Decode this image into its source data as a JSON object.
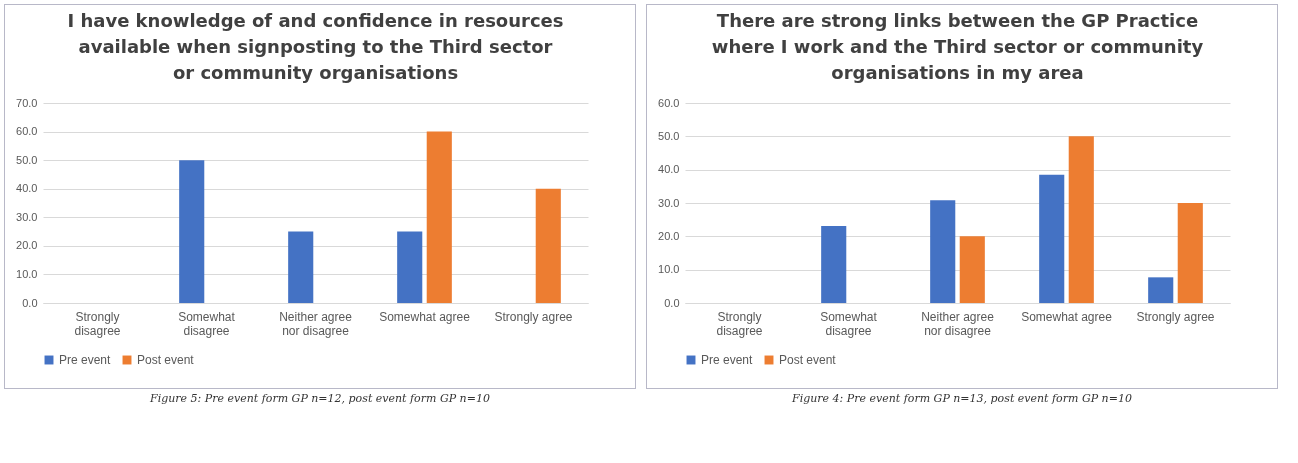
{
  "chart_data": [
    {
      "type": "bar",
      "title": "I have knowledge of and confidence in resources available when signposting to the Third sector or community organisations",
      "categories": [
        "Strongly disagree",
        "Somewhat disagree",
        "Neither agree nor disagree",
        "Somewhat agree",
        "Strongly agree"
      ],
      "series": [
        {
          "name": "Pre event",
          "color": "#4472c4",
          "values": [
            0,
            50,
            25,
            25,
            0
          ]
        },
        {
          "name": "Post event",
          "color": "#ed7d31",
          "values": [
            0,
            0,
            0,
            60,
            40
          ]
        }
      ],
      "ylim": [
        0,
        70
      ],
      "yticks": [
        {
          "value": 0,
          "label": "0.0"
        },
        {
          "value": 10,
          "label": "10.0"
        },
        {
          "value": 20,
          "label": "20.0"
        },
        {
          "value": 30,
          "label": "30.0"
        },
        {
          "value": 40,
          "label": "40.0"
        },
        {
          "value": 50,
          "label": "50.0"
        },
        {
          "value": 60,
          "label": "60.0"
        },
        {
          "value": 70,
          "label": "70.0"
        }
      ],
      "grid": "y",
      "legend": "bottom",
      "annotations": [
        "Figure 5: Pre event form GP n=12, post event form GP n=10"
      ]
    },
    {
      "type": "bar",
      "title": "There are strong links between the GP Practice where I work and the Third sector or community organisations in my area",
      "categories": [
        "Strongly disagree",
        "Somewhat disagree",
        "Neither agree nor disagree",
        "Somewhat agree",
        "Strongly agree"
      ],
      "series": [
        {
          "name": "Pre event",
          "color": "#4472c4",
          "values": [
            0,
            23.1,
            30.8,
            38.5,
            7.7
          ]
        },
        {
          "name": "Post event",
          "color": "#ed7d31",
          "values": [
            0,
            0,
            20,
            50,
            30
          ]
        }
      ],
      "ylim": [
        0,
        60
      ],
      "yticks": [
        {
          "value": 0,
          "label": "0.0"
        },
        {
          "value": 10,
          "label": "10.0"
        },
        {
          "value": 20,
          "label": "20.0"
        },
        {
          "value": 30,
          "label": "30.0"
        },
        {
          "value": 40,
          "label": "40.0"
        },
        {
          "value": 50,
          "label": "50.0"
        },
        {
          "value": 60,
          "label": "60.0"
        }
      ],
      "grid": "y",
      "legend": "bottom",
      "annotations": [
        "Figure 4: Pre event form GP n=13, post event form GP n=10"
      ]
    }
  ]
}
